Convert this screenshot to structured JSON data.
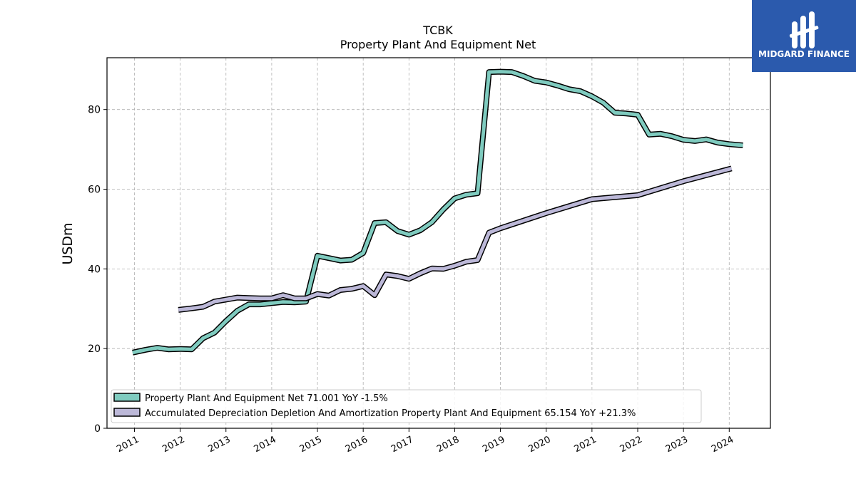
{
  "chart_data": {
    "type": "line",
    "title": "TCBK",
    "subtitle": "Property Plant And Equipment Net",
    "ylabel": "USDm",
    "xlabel": "",
    "ylim": [
      0,
      93
    ],
    "xlim": [
      2010.4,
      2024.9
    ],
    "yticks": [
      0,
      20,
      40,
      60,
      80
    ],
    "xticks": [
      "2011",
      "2012",
      "2013",
      "2014",
      "2015",
      "2016",
      "2017",
      "2018",
      "2019",
      "2020",
      "2021",
      "2022",
      "2023",
      "2024"
    ],
    "grid": true,
    "legend_position": "lower-left",
    "series": [
      {
        "name": "Property Plant And Equipment Net",
        "legend": "Property Plant And Equipment Net  71.001 YoY -1.5%",
        "color": "#7fcbbf",
        "points": [
          [
            2010.96,
            19.0
          ],
          [
            2011.25,
            19.7
          ],
          [
            2011.5,
            20.2
          ],
          [
            2011.75,
            19.8
          ],
          [
            2012.0,
            19.9
          ],
          [
            2012.25,
            19.8
          ],
          [
            2012.5,
            22.6
          ],
          [
            2012.75,
            24.0
          ],
          [
            2013.0,
            26.9
          ],
          [
            2013.25,
            29.5
          ],
          [
            2013.5,
            31.1
          ],
          [
            2013.75,
            31.1
          ],
          [
            2014.0,
            31.4
          ],
          [
            2014.25,
            31.7
          ],
          [
            2014.5,
            31.6
          ],
          [
            2014.75,
            31.8
          ],
          [
            2015.0,
            43.3
          ],
          [
            2015.25,
            42.7
          ],
          [
            2015.5,
            42.1
          ],
          [
            2015.75,
            42.3
          ],
          [
            2016.0,
            44.0
          ],
          [
            2016.25,
            51.5
          ],
          [
            2016.5,
            51.7
          ],
          [
            2016.75,
            49.5
          ],
          [
            2017.0,
            48.6
          ],
          [
            2017.25,
            49.7
          ],
          [
            2017.5,
            51.7
          ],
          [
            2017.75,
            54.9
          ],
          [
            2018.0,
            57.7
          ],
          [
            2018.25,
            58.6
          ],
          [
            2018.5,
            59.0
          ],
          [
            2018.75,
            89.4
          ],
          [
            2019.0,
            89.5
          ],
          [
            2019.25,
            89.4
          ],
          [
            2019.5,
            88.4
          ],
          [
            2019.75,
            87.2
          ],
          [
            2020.0,
            86.8
          ],
          [
            2020.25,
            86.0
          ],
          [
            2020.5,
            85.1
          ],
          [
            2020.75,
            84.6
          ],
          [
            2021.0,
            83.3
          ],
          [
            2021.25,
            81.7
          ],
          [
            2021.5,
            79.2
          ],
          [
            2021.75,
            79.0
          ],
          [
            2022.0,
            78.7
          ],
          [
            2022.25,
            73.7
          ],
          [
            2022.5,
            73.9
          ],
          [
            2022.75,
            73.3
          ],
          [
            2023.0,
            72.4
          ],
          [
            2023.25,
            72.1
          ],
          [
            2023.5,
            72.5
          ],
          [
            2023.75,
            71.7
          ],
          [
            2024.0,
            71.3
          ],
          [
            2024.3,
            71.0
          ]
        ]
      },
      {
        "name": "Accumulated Depreciation Depletion And Amortization Property Plant And Equipment",
        "legend": "Accumulated Depreciation Depletion And Amortization Property Plant And Equipment  65.154 YoY +21.3%",
        "color": "#bcb8d8",
        "points": [
          [
            2011.96,
            29.7
          ],
          [
            2012.25,
            30.1
          ],
          [
            2012.5,
            30.5
          ],
          [
            2012.75,
            31.8
          ],
          [
            2013.0,
            32.3
          ],
          [
            2013.25,
            32.8
          ],
          [
            2013.5,
            32.7
          ],
          [
            2013.75,
            32.6
          ],
          [
            2014.0,
            32.6
          ],
          [
            2014.25,
            33.4
          ],
          [
            2014.5,
            32.6
          ],
          [
            2014.75,
            32.6
          ],
          [
            2015.0,
            33.7
          ],
          [
            2015.25,
            33.3
          ],
          [
            2015.5,
            34.7
          ],
          [
            2015.75,
            35.0
          ],
          [
            2016.0,
            35.7
          ],
          [
            2016.25,
            33.4
          ],
          [
            2016.5,
            38.6
          ],
          [
            2016.75,
            38.2
          ],
          [
            2017.0,
            37.5
          ],
          [
            2017.25,
            38.9
          ],
          [
            2017.5,
            40.1
          ],
          [
            2017.75,
            40.0
          ],
          [
            2018.0,
            40.8
          ],
          [
            2018.25,
            41.8
          ],
          [
            2018.5,
            42.2
          ],
          [
            2018.75,
            49.1
          ],
          [
            2019.0,
            50.2
          ],
          [
            2020.0,
            54.0
          ],
          [
            2021.0,
            57.5
          ],
          [
            2022.0,
            58.5
          ],
          [
            2023.0,
            62.0
          ],
          [
            2024.05,
            65.2
          ]
        ]
      }
    ]
  },
  "logo": {
    "text": "MIDGARD FINANCE",
    "background": "#2b5aad"
  }
}
